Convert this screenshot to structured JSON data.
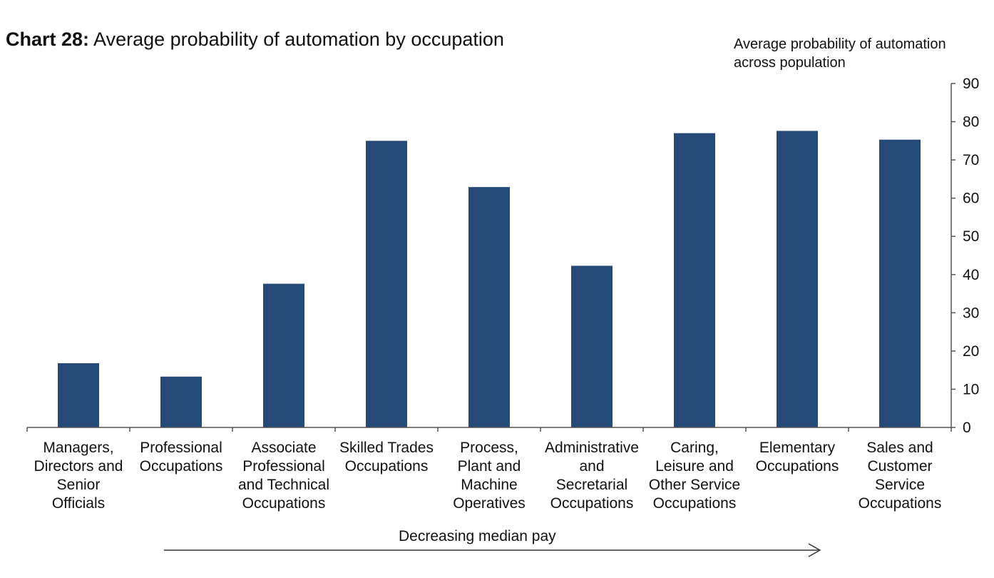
{
  "chart_data": {
    "type": "bar",
    "title_prefix": "Chart 28:",
    "title": "Average probability of automation by occupation",
    "ylabel": "Average probability of automation across population",
    "ylim": [
      0,
      90
    ],
    "yticks": [
      0,
      10,
      20,
      30,
      40,
      50,
      60,
      70,
      80,
      90
    ],
    "categories": [
      "Managers, Directors and Senior Officials",
      "Professional Occupations",
      "Associate Professional and Technical Occupations",
      "Skilled Trades Occupations",
      "Process, Plant and Machine Operatives",
      "Administrative and Secretarial Occupations",
      "Caring, Leisure and Other Service Occupations",
      "Elementary Occupations",
      "Sales and Customer Service Occupations"
    ],
    "category_lines": [
      [
        "Managers,",
        "Directors and",
        "Senior",
        "Officials"
      ],
      [
        "Professional",
        "Occupations"
      ],
      [
        "Associate",
        "Professional",
        "and Technical",
        "Occupations"
      ],
      [
        "Skilled Trades",
        "Occupations"
      ],
      [
        "Process,",
        "Plant and",
        "Machine",
        "Operatives"
      ],
      [
        "Administrative",
        "and",
        "Secretarial",
        "Occupations"
      ],
      [
        "Caring,",
        "Leisure and",
        "Other Service",
        "Occupations"
      ],
      [
        "Elementary",
        "Occupations"
      ],
      [
        "Sales and",
        "Customer",
        "Service",
        "Occupations"
      ]
    ],
    "values": [
      16.8,
      13.3,
      37.6,
      75.0,
      62.9,
      42.3,
      77.0,
      77.6,
      75.3
    ],
    "bar_color": "#264a77",
    "axis_color": "#555555",
    "arrow_label": "Decreasing median pay"
  }
}
